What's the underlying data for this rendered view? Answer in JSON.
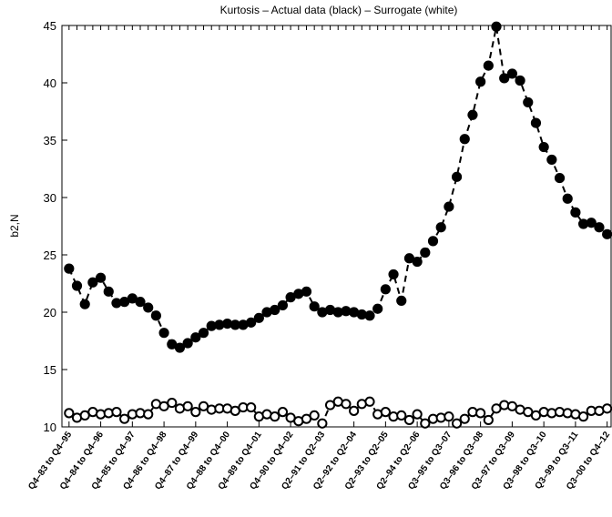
{
  "chart_data": {
    "type": "line",
    "title": "Kurtosis – Actual data (black) – Surrogate (white)",
    "y_label": "b2,N",
    "categories": [
      "Q4–83 to Q4–95",
      null,
      null,
      null,
      "Q4–84 to Q4–96",
      null,
      null,
      null,
      "Q4–85 to Q4–97",
      null,
      null,
      null,
      "Q4–86 to Q4–98",
      null,
      null,
      null,
      "Q4–87 to Q4–99",
      null,
      null,
      null,
      "Q4–88 to Q4–00",
      null,
      null,
      null,
      "Q4–89 to Q4–01",
      null,
      null,
      null,
      "Q4–90 to Q4–02",
      null,
      null,
      null,
      "Q2–91 to Q2–03",
      null,
      null,
      null,
      "Q2–92 to Q2–04",
      null,
      null,
      null,
      "Q2–93 to Q2–05",
      null,
      null,
      null,
      "Q2–94 to Q2–06",
      null,
      null,
      null,
      "Q3–95 to Q3–07",
      null,
      null,
      null,
      "Q3–96 to Q3–08",
      null,
      null,
      null,
      "Q3–97 to Q3–09",
      null,
      null,
      null,
      "Q3–98 to Q3–10",
      null,
      null,
      null,
      "Q3–99 to Q3–11",
      null,
      null,
      null,
      "Q3–00 to Q4–12"
    ],
    "series": [
      {
        "color": "#000000",
        "marker_fill": "#000000",
        "values": [
          23.8,
          22.3,
          20.7,
          22.6,
          23.0,
          21.8,
          20.8,
          20.9,
          21.2,
          20.9,
          20.4,
          19.7,
          18.2,
          17.2,
          16.9,
          17.3,
          17.8,
          18.2,
          18.8,
          18.9,
          19.0,
          18.9,
          18.9,
          19.1,
          19.5,
          20.0,
          20.2,
          20.6,
          21.3,
          21.6,
          21.8,
          20.5,
          20.0,
          20.2,
          20.0,
          20.1,
          20.0,
          19.8,
          19.7,
          20.3,
          22.0,
          23.3,
          21.0,
          24.7,
          24.4,
          25.2,
          26.2,
          27.4,
          29.2,
          31.8,
          35.1,
          37.2,
          40.1,
          41.5,
          44.9,
          40.4,
          40.8,
          40.2,
          38.3,
          36.5,
          34.4,
          33.3,
          31.7,
          29.9,
          28.7,
          27.7,
          27.8,
          27.4,
          26.8
        ]
      },
      {
        "color": "#000000",
        "marker_fill": "#ffffff",
        "values": [
          11.2,
          10.8,
          11.0,
          11.3,
          11.1,
          11.2,
          11.3,
          10.7,
          11.1,
          11.2,
          11.1,
          12.0,
          11.8,
          12.1,
          11.6,
          11.8,
          11.3,
          11.8,
          11.5,
          11.6,
          11.6,
          11.4,
          11.7,
          11.7,
          10.9,
          11.1,
          10.9,
          11.3,
          10.8,
          10.5,
          10.7,
          11.0,
          10.3,
          11.9,
          12.2,
          12.0,
          11.4,
          12.0,
          12.2,
          11.1,
          11.3,
          10.9,
          11.0,
          10.6,
          11.1,
          10.3,
          10.7,
          10.8,
          10.9,
          10.3,
          10.7,
          11.3,
          11.2,
          10.6,
          11.6,
          11.9,
          11.8,
          11.5,
          11.3,
          11.0,
          11.3,
          11.2,
          11.3,
          11.2,
          11.1,
          10.9,
          11.4,
          11.4,
          11.6
        ]
      }
    ],
    "ylim": [
      10,
      45
    ],
    "yticks": [
      10,
      15,
      20,
      25,
      30,
      35,
      40,
      45
    ],
    "line_style": "dashed"
  }
}
